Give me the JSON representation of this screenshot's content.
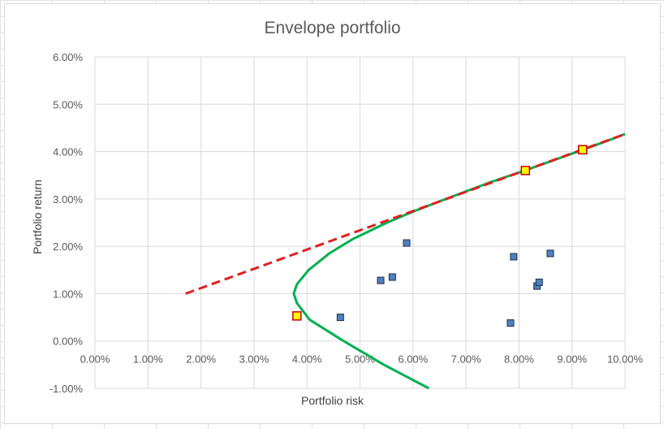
{
  "chart_data": {
    "type": "scatter",
    "title": "Envelope portfolio",
    "xlabel": "Portfolio risk",
    "ylabel": "Portfolio return",
    "xlim": [
      0,
      0.1
    ],
    "ylim": [
      -0.01,
      0.06
    ],
    "x_ticks": [
      "0.00%",
      "1.00%",
      "2.00%",
      "3.00%",
      "4.00%",
      "5.00%",
      "6.00%",
      "7.00%",
      "8.00%",
      "9.00%",
      "10.00%"
    ],
    "y_ticks": [
      "-1.00%",
      "0.00%",
      "1.00%",
      "2.00%",
      "3.00%",
      "4.00%",
      "5.00%",
      "6.00%"
    ],
    "grid": true,
    "legend": "none",
    "series": [
      {
        "style": "line",
        "color": "#00b050",
        "points": [
          [
            0.063,
            -0.01
          ],
          [
            0.0545,
            -0.005
          ],
          [
            0.0469,
            0.0
          ],
          [
            0.0405,
            0.0045
          ],
          [
            0.0381,
            0.008
          ],
          [
            0.0375,
            0.01
          ],
          [
            0.0381,
            0.012
          ],
          [
            0.0403,
            0.015
          ],
          [
            0.0442,
            0.0185
          ],
          [
            0.0486,
            0.0215
          ],
          [
            0.0551,
            0.025
          ],
          [
            0.0597,
            0.0272
          ],
          [
            0.0662,
            0.03
          ],
          [
            0.0745,
            0.0335
          ],
          [
            0.0816,
            0.0362
          ],
          [
            0.0921,
            0.0404
          ],
          [
            0.0967,
            0.0423
          ],
          [
            0.1,
            0.0437
          ]
        ]
      },
      {
        "style": "dashed-line",
        "color": "#e02020",
        "points": [
          [
            0.0171,
            0.01
          ],
          [
            0.1,
            0.0437
          ]
        ]
      },
      {
        "style": "square-markers",
        "color": "#4f81bd",
        "points": [
          [
            0.0463,
            0.005
          ],
          [
            0.0539,
            0.0128
          ],
          [
            0.0561,
            0.0135
          ],
          [
            0.0588,
            0.0207
          ],
          [
            0.079,
            0.0178
          ],
          [
            0.0784,
            0.0038
          ],
          [
            0.0834,
            0.0116
          ],
          [
            0.0838,
            0.0124
          ],
          [
            0.0859,
            0.0185
          ]
        ]
      },
      {
        "style": "square-markers",
        "color": "#ffff00",
        "points": [
          [
            0.0381,
            0.0053
          ],
          [
            0.0812,
            0.036
          ],
          [
            0.092,
            0.0404
          ]
        ]
      }
    ]
  }
}
